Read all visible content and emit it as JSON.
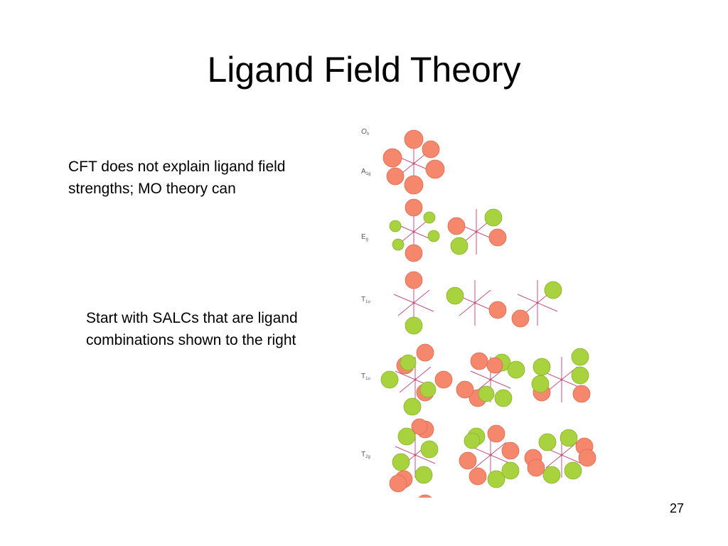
{
  "slide": {
    "title": "Ligand Field Theory",
    "text_1": "CFT does not explain ligand field strengths; MO theory can",
    "text_2": "Start with SALCs that are ligand combinations shown to the right",
    "page_number": "27"
  },
  "diagram": {
    "colors": {
      "positive_lobe": "#F4876C",
      "negative_lobe": "#A9D23F",
      "axis": "#C4547A"
    },
    "rows": [
      {
        "label": "A",
        "sub": "1g"
      },
      {
        "label": "E",
        "sub": "g"
      },
      {
        "label": "T",
        "sub": "1u"
      },
      {
        "label": "T",
        "sub": "1u"
      },
      {
        "label": "T",
        "sub": "2g"
      }
    ],
    "header_label": "O",
    "header_sub": "h"
  }
}
